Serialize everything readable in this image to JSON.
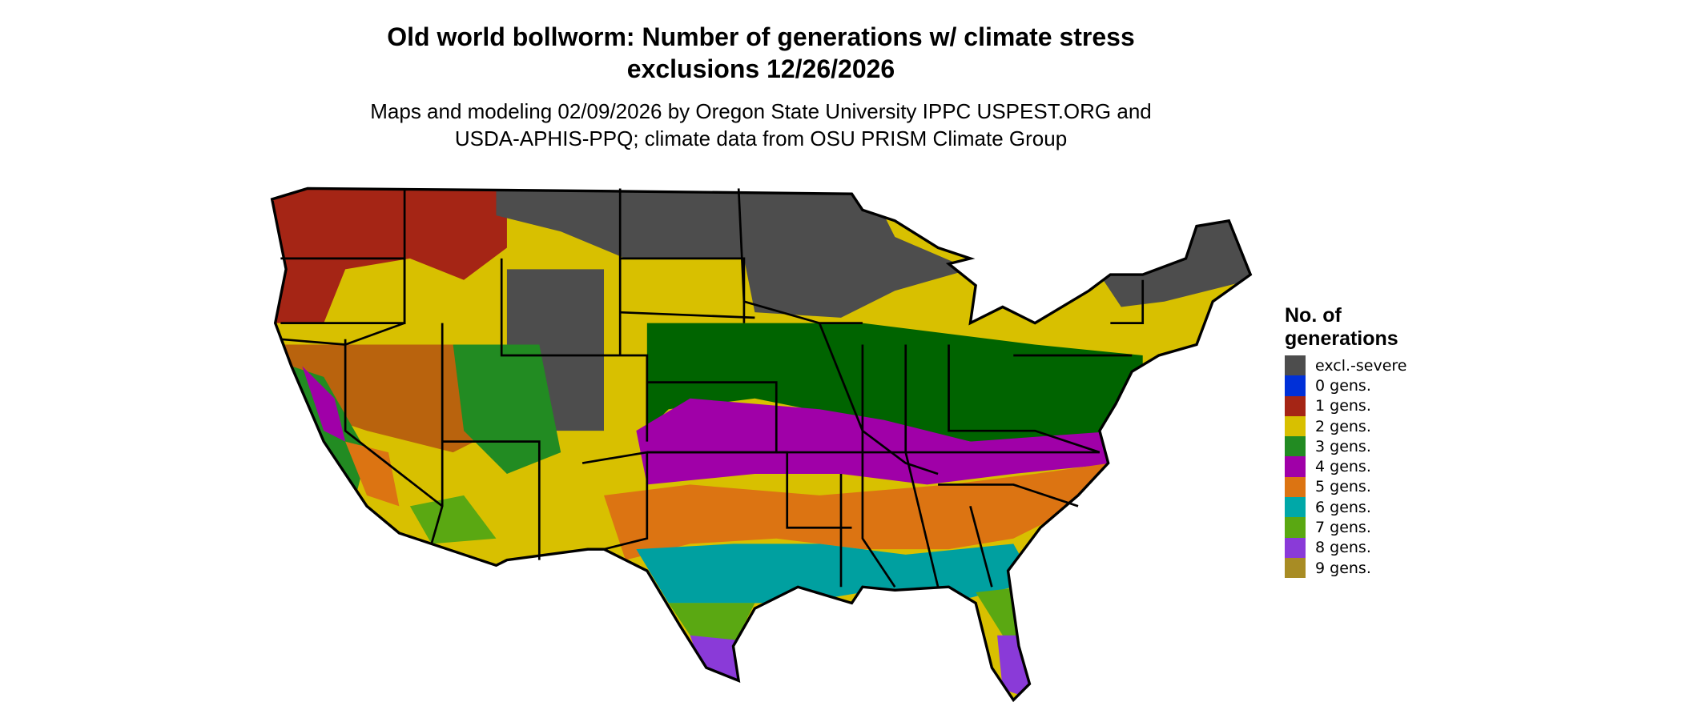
{
  "title_line1": "Old world bollworm: Number of generations w/ climate stress",
  "title_line2": "exclusions 12/26/2026",
  "subtitle_line1": "Maps and modeling 02/09/2026 by Oregon State University IPPC USPEST.ORG and",
  "subtitle_line2": "USDA-APHIS-PPQ; climate data from OSU PRISM Climate Group",
  "legend": {
    "title_line1": "No. of",
    "title_line2": "generations",
    "items": [
      {
        "label": "excl.-severe",
        "color": "#4d4d4d"
      },
      {
        "label": "0 gens.",
        "color": "#0030d8"
      },
      {
        "label": "1 gens.",
        "color": "#a52515"
      },
      {
        "label": "2 gens.",
        "color": "#d8c000"
      },
      {
        "label": "3 gens.",
        "color": "#228b22"
      },
      {
        "label": "4 gens.",
        "color": "#a000a8"
      },
      {
        "label": "5 gens.",
        "color": "#dc7412"
      },
      {
        "label": "6 gens.",
        "color": "#00a8a8"
      },
      {
        "label": "7 gens.",
        "color": "#5aa812"
      },
      {
        "label": "8 gens.",
        "color": "#8a3ad8"
      },
      {
        "label": "9 gens.",
        "color": "#a88c24"
      }
    ]
  }
}
